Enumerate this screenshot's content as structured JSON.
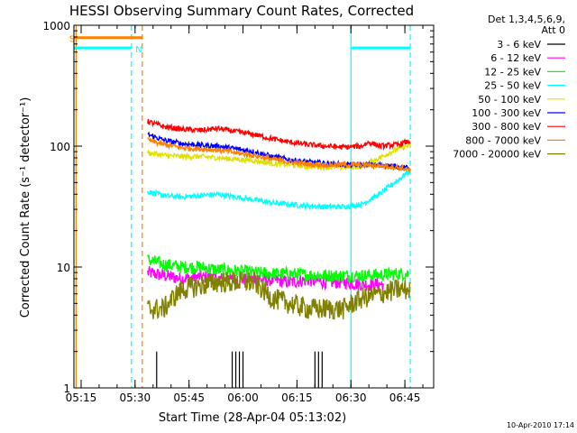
{
  "chart_data": {
    "type": "line",
    "title": "HESSI Observing Summary Count Rates, Corrected",
    "xlabel": "Start Time (28-Apr-04 05:13:02)",
    "ylabel": "Corrected Count Rate (s⁻¹ detector⁻¹)",
    "x_unit": "minutes after 05:13:02",
    "xlim": [
      0,
      100
    ],
    "ylim": [
      1,
      1000
    ],
    "yscale": "log",
    "x_ticks": [
      {
        "label": "05:15",
        "value": 2
      },
      {
        "label": "05:30",
        "value": 17
      },
      {
        "label": "05:45",
        "value": 32
      },
      {
        "label": "06:00",
        "value": 47
      },
      {
        "label": "06:15",
        "value": 62
      },
      {
        "label": "06:30",
        "value": 77
      },
      {
        "label": "06:45",
        "value": 92
      }
    ],
    "y_ticks": [
      {
        "label": "1",
        "value": 1
      },
      {
        "label": "10",
        "value": 10
      },
      {
        "label": "100",
        "value": 100
      },
      {
        "label": "1000",
        "value": 1000
      }
    ],
    "legend_header": [
      "Det 1,3,4,5,6,9,",
      "Att 0"
    ],
    "series": [
      {
        "name": "3 - 6 keV",
        "color": "#000000",
        "x": [
          0,
          100
        ],
        "y": [
          1,
          1
        ]
      },
      {
        "name": "6 - 12 keV",
        "color": "#ff00ff",
        "x": [
          20.5,
          25,
          30,
          35,
          40,
          45,
          50,
          55,
          60,
          65,
          70,
          75,
          80,
          86
        ],
        "y": [
          9,
          8.5,
          8,
          8.3,
          8,
          7.8,
          8,
          7.8,
          7.5,
          7.8,
          7.5,
          7.5,
          7.2,
          7.2
        ]
      },
      {
        "name": "12 - 25 keV",
        "color": "#00ff00",
        "x": [
          20.5,
          25,
          30,
          35,
          40,
          45,
          50,
          55,
          60,
          65,
          70,
          75,
          80,
          85,
          90,
          93
        ],
        "y": [
          11.5,
          10.5,
          10,
          10,
          9.5,
          9.3,
          9,
          8.8,
          8.8,
          8.6,
          8.5,
          8.5,
          8.5,
          8.6,
          8.8,
          8.8
        ]
      },
      {
        "name": "25 - 50 keV",
        "color": "#00ffff",
        "x": [
          20.5,
          25,
          30,
          35,
          40,
          45,
          50,
          55,
          60,
          65,
          70,
          75,
          80,
          85,
          90,
          93.5
        ],
        "y": [
          42,
          39,
          38,
          39,
          40,
          38,
          36,
          34,
          33,
          32,
          31.5,
          31.5,
          33,
          40,
          52,
          63
        ]
      },
      {
        "name": "50 - 100 keV",
        "color": "#e0e000",
        "x": [
          20.5,
          25,
          30,
          35,
          40,
          45,
          50,
          55,
          60,
          65,
          70,
          75,
          80,
          85,
          90,
          93.5
        ],
        "y": [
          88,
          84,
          82,
          82,
          80,
          78,
          76,
          72,
          70,
          68,
          67,
          67,
          68,
          80,
          95,
          102
        ]
      },
      {
        "name": "100 - 300 keV",
        "color": "#0000ff",
        "x": [
          20.5,
          25,
          30,
          35,
          40,
          45,
          50,
          55,
          60,
          65,
          70,
          75,
          80,
          85,
          90,
          93.5
        ],
        "y": [
          125,
          112,
          105,
          102,
          100,
          95,
          90,
          82,
          77,
          74,
          72,
          70,
          70,
          70,
          68,
          65
        ]
      },
      {
        "name": "300 - 800 keV",
        "color": "#ff0000",
        "x": [
          20.5,
          25,
          30,
          35,
          40,
          45,
          50,
          55,
          60,
          65,
          70,
          75,
          80,
          82,
          85,
          90,
          93.5
        ],
        "y": [
          160,
          145,
          138,
          135,
          140,
          132,
          125,
          115,
          108,
          103,
          100,
          98,
          100,
          108,
          100,
          103,
          110
        ]
      },
      {
        "name": "800 - 7000 keV",
        "color": "#ff8000",
        "x": [
          20.5,
          25,
          30,
          35,
          40,
          45,
          50,
          55,
          60,
          65,
          70,
          75,
          80,
          85,
          90,
          93.5
        ],
        "y": [
          112,
          103,
          97,
          95,
          93,
          88,
          84,
          78,
          74,
          71,
          70,
          70,
          70,
          69,
          67,
          63
        ]
      },
      {
        "name": "7000 - 20000 keV",
        "color": "#808000",
        "x": [
          20.5,
          25,
          30,
          35,
          40,
          45,
          50,
          55,
          60,
          65,
          70,
          75,
          80,
          85,
          90,
          93.5
        ],
        "y": [
          4.5,
          4.5,
          6.5,
          7,
          7.5,
          7.5,
          7.5,
          5.5,
          5,
          4.5,
          4.5,
          4.5,
          5.5,
          6,
          6.5,
          6.5
        ]
      }
    ],
    "black_bursts": [
      {
        "x": 23,
        "y": 2
      },
      {
        "x": 44,
        "y": 2
      },
      {
        "x": 45,
        "y": 2
      },
      {
        "x": 46,
        "y": 2
      },
      {
        "x": 47,
        "y": 2
      },
      {
        "x": 67,
        "y": 2
      },
      {
        "x": 68,
        "y": 2
      },
      {
        "x": 69,
        "y": 2
      }
    ],
    "saa_segments": [
      {
        "color": "#00ffff",
        "x": [
          0,
          16
        ],
        "y": 650
      },
      {
        "color": "#00ffff",
        "x": [
          77,
          93.5
        ],
        "y": 650
      },
      {
        "color": "#ff8000",
        "x": [
          0,
          19
        ],
        "y": 790
      }
    ],
    "vlines": [
      {
        "x": 0,
        "color": "#00ffff",
        "style": "solid"
      },
      {
        "x": 0.6,
        "color": "#ff8000",
        "style": "solid"
      },
      {
        "x": 16,
        "color": "#00ffff",
        "style": "dashed"
      },
      {
        "x": 19,
        "color": "#ff8000",
        "style": "dashed"
      },
      {
        "x": 77,
        "color": "#00ffff",
        "style": "solid"
      },
      {
        "x": 93.5,
        "color": "#00ffff",
        "style": "dashed"
      }
    ],
    "annotations": [
      {
        "text": "S",
        "x": -0.5,
        "y": 780,
        "color": "#ff8000"
      },
      {
        "text": "N",
        "x": 18,
        "y": 640,
        "color": "#00ffff"
      }
    ],
    "footer_timestamp": "10-Apr-2010 17:14"
  }
}
